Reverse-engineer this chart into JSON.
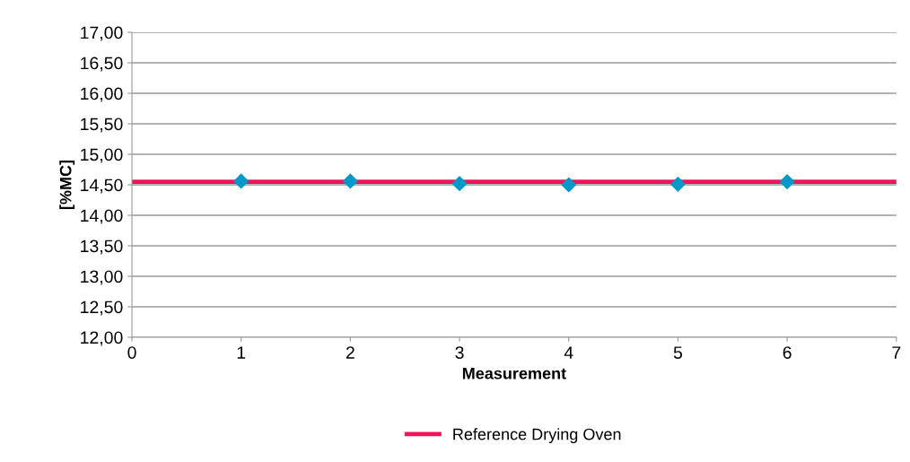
{
  "chart_data": {
    "type": "scatter",
    "xlabel": "Measurement",
    "ylabel": "[%MC]",
    "xlim": [
      0,
      7
    ],
    "xticks": [
      0,
      1,
      2,
      3,
      4,
      5,
      6,
      7
    ],
    "ylim": [
      12,
      17
    ],
    "yticks": [
      {
        "value": 12,
        "label": "12,00"
      },
      {
        "value": 12.5,
        "label": "12,50"
      },
      {
        "value": 13,
        "label": "13,00"
      },
      {
        "value": 13.5,
        "label": "13,50"
      },
      {
        "value": 14,
        "label": "14,00"
      },
      {
        "value": 14.5,
        "label": "14,50"
      },
      {
        "value": 15,
        "label": "15,00"
      },
      {
        "value": 15.5,
        "label": "15,50"
      },
      {
        "value": 16,
        "label": "16,00"
      },
      {
        "value": 16.5,
        "label": "16,50"
      },
      {
        "value": 17,
        "label": "17,00"
      }
    ],
    "grid": "y",
    "legend": "bottom",
    "series": [
      {
        "name": "Reference Drying Oven",
        "type": "line",
        "marker": "none",
        "color": "#f0145a",
        "x": [
          0,
          7
        ],
        "values": [
          14.55,
          14.55
        ]
      },
      {
        "marker": "diamond",
        "color": "#0099cc",
        "x": [
          1,
          2,
          3,
          4,
          5,
          6
        ],
        "values": [
          14.56,
          14.56,
          14.52,
          14.5,
          14.51,
          14.55
        ]
      }
    ]
  }
}
